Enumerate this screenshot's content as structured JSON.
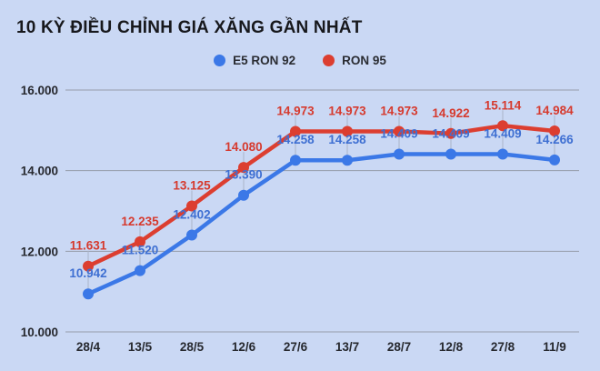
{
  "page": {
    "background": "#cad8f4"
  },
  "header": {
    "title": "10 KỲ ĐIỀU CHỈNH GIÁ XĂNG GẦN NHẤT"
  },
  "legend": {
    "items": [
      {
        "label": "E5 RON 92",
        "color": "#3b78e7"
      },
      {
        "label": "RON 95",
        "color": "#dc3e30"
      }
    ]
  },
  "chart_data": {
    "type": "line",
    "title": "10 KỲ ĐIỀU CHỈNH GIÁ XĂNG GẦN NHẤT",
    "categories": [
      "28/4",
      "13/5",
      "28/5",
      "12/6",
      "27/6",
      "13/7",
      "28/7",
      "12/8",
      "27/8",
      "11/9"
    ],
    "series": [
      {
        "name": "E5 RON 92",
        "color": "#3b78e7",
        "label_color": "#3e6fd2",
        "values": [
          10942,
          11520,
          12402,
          13390,
          14258,
          14258,
          14409,
          14409,
          14409,
          14266
        ],
        "point_labels": [
          "10.942",
          "11.520",
          "12.402",
          "13.390",
          "14.258",
          "14.258",
          "14.409",
          "14.409",
          "14.409",
          "14.266"
        ]
      },
      {
        "name": "RON 95",
        "color": "#dc3e30",
        "label_color": "#d63a2e",
        "values": [
          11631,
          12235,
          13125,
          14080,
          14973,
          14973,
          14973,
          14922,
          15114,
          14984
        ],
        "point_labels": [
          "11.631",
          "12.235",
          "13.125",
          "14.080",
          "14.973",
          "14.973",
          "14.973",
          "14.922",
          "15.114",
          "14.984"
        ]
      }
    ],
    "ylim": [
      10000,
      16000
    ],
    "yticks": [
      16000,
      14000,
      12000,
      10000
    ],
    "ytick_labels": [
      "16.000",
      "14.000",
      "12.000",
      "10.000"
    ],
    "xlabel": "",
    "ylabel": "",
    "grid": "horizontal",
    "legend_position": "top-center",
    "styles": {
      "grid_color": "#959caa",
      "dropline_color": "#a9b3c8",
      "axis_text_color": "#26282e"
    }
  }
}
